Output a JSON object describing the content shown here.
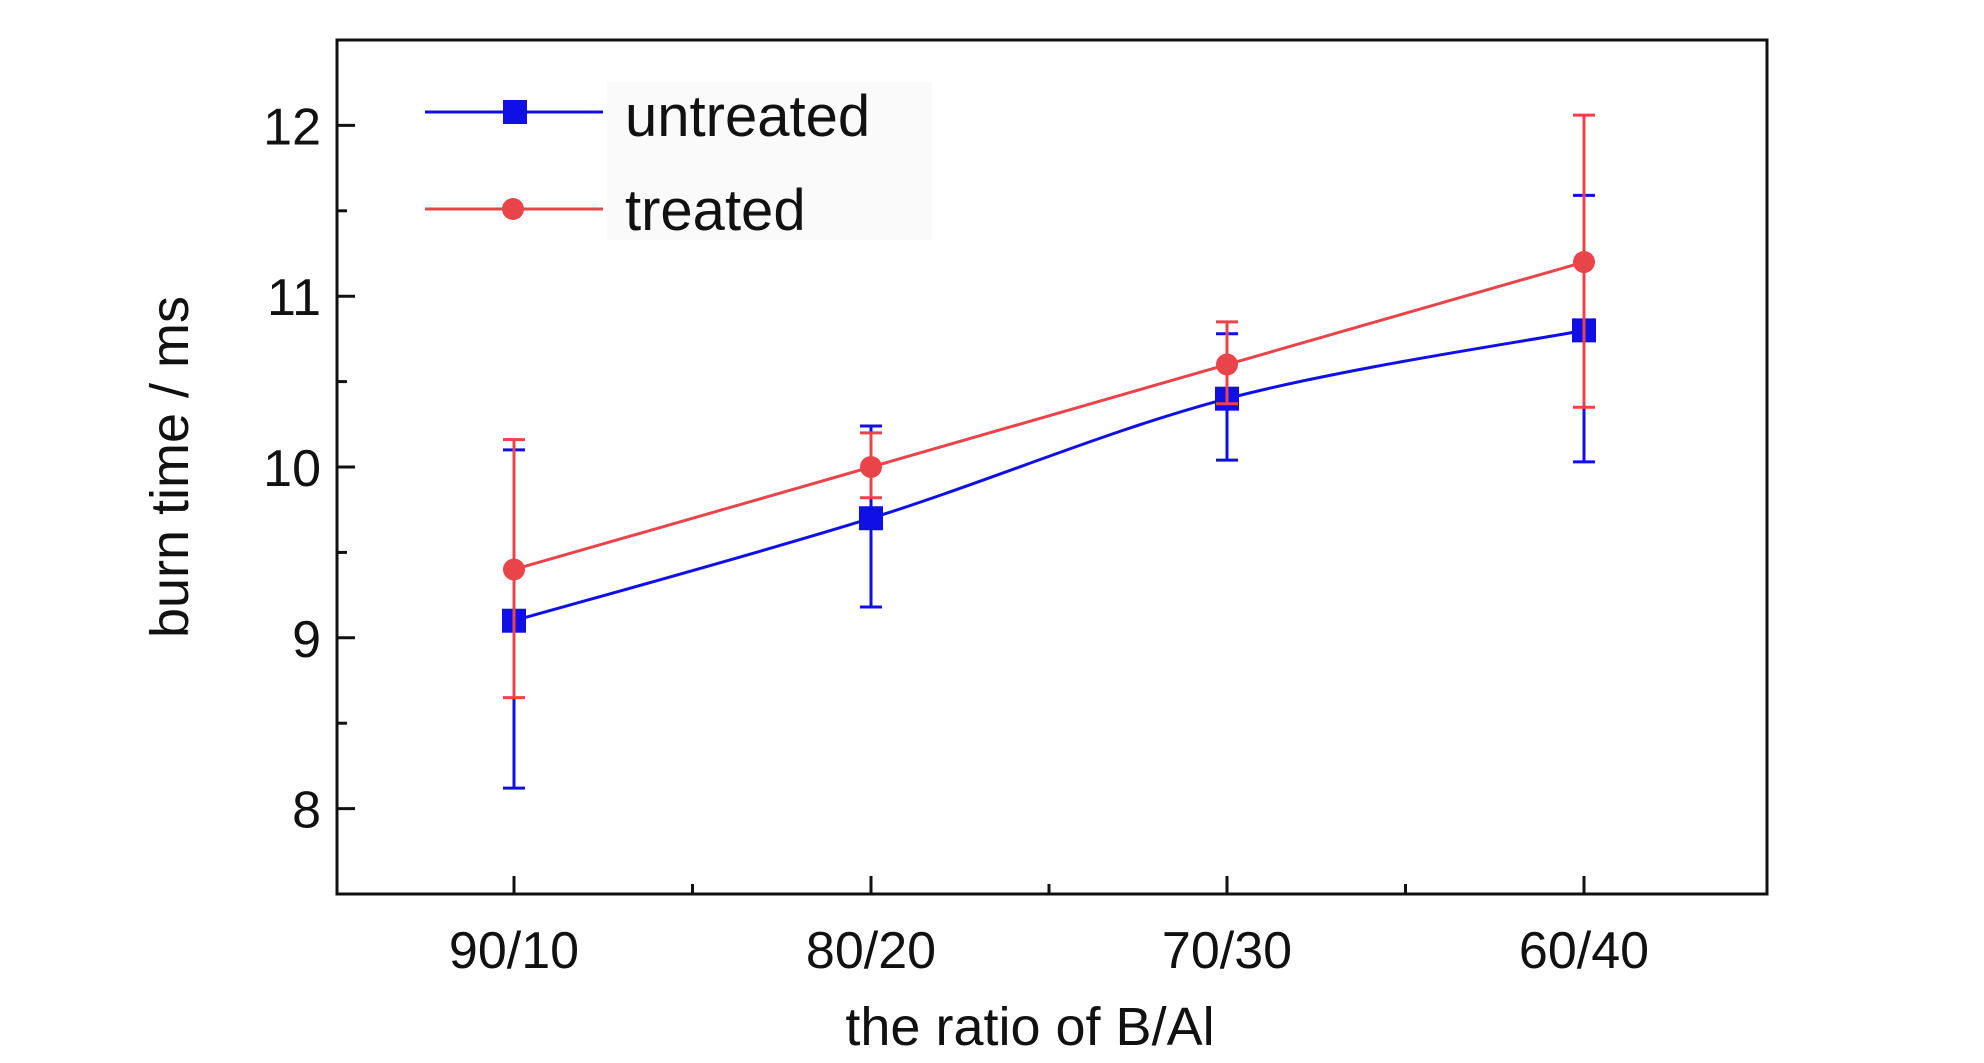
{
  "chart_data": {
    "type": "line",
    "title": "",
    "xlabel": "the ratio of B/Al",
    "ylabel": "burn time / ms",
    "categories": [
      "90/10",
      "80/20",
      "70/30",
      "60/40"
    ],
    "ylim": [
      7.5,
      12.5
    ],
    "yticks": [
      8,
      9,
      10,
      11,
      12
    ],
    "grid": false,
    "legend_position": "top-left",
    "series": [
      {
        "name": "untreated",
        "color": "#1010e6",
        "marker": "square",
        "values": [
          9.1,
          9.7,
          10.4,
          10.8
        ],
        "error_low": [
          8.12,
          9.18,
          10.04,
          10.03
        ],
        "error_high": [
          10.1,
          10.24,
          10.78,
          11.59
        ]
      },
      {
        "name": "treated",
        "color": "#e8444a",
        "marker": "circle",
        "values": [
          9.4,
          10.0,
          10.6,
          11.2
        ],
        "error_low": [
          8.65,
          9.82,
          10.37,
          10.35
        ],
        "error_high": [
          10.16,
          10.2,
          10.85,
          12.06
        ]
      }
    ]
  }
}
